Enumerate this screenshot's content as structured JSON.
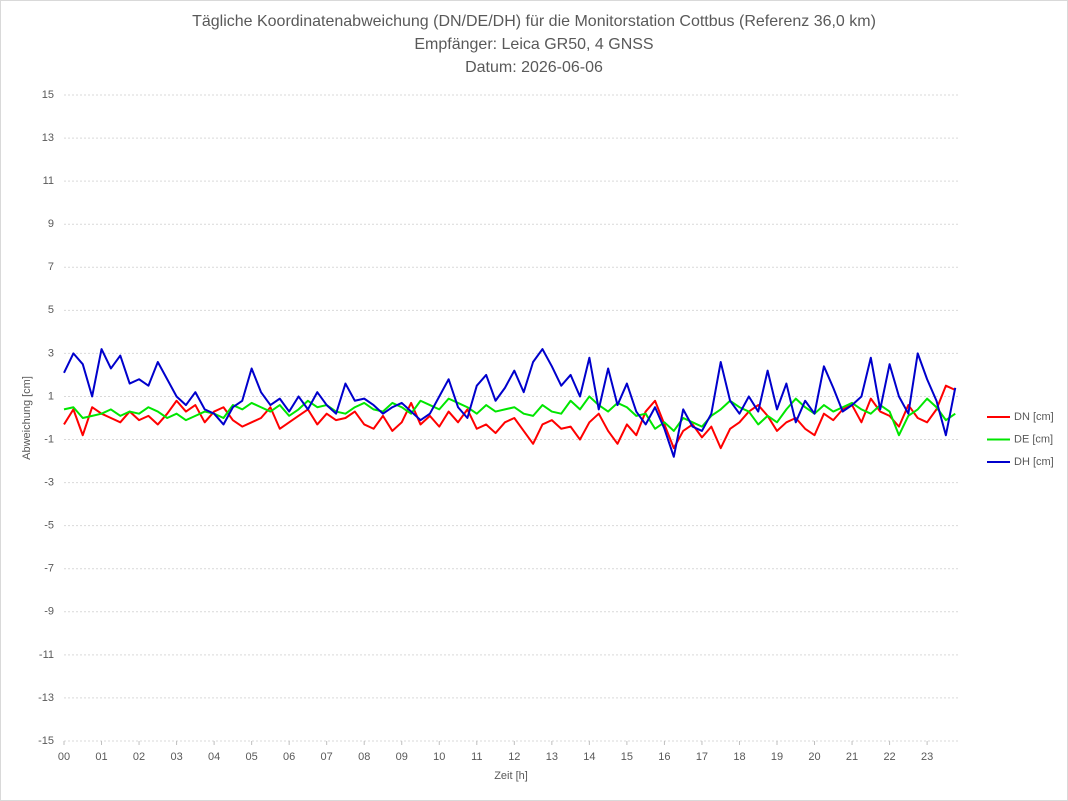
{
  "chart_data": {
    "type": "line",
    "title": "Tägliche Koordinatenabweichung (DN/DE/DH) für die Monitorstation Cottbus (Referenz 36,0 km)",
    "subtitle": [
      "Empfänger: Leica GR50, 4 GNSS",
      "Datum: 2026-06-06"
    ],
    "x_label": "Zeit [h]",
    "y_label": "Abweichung [cm]",
    "x": [
      0,
      0.25,
      0.5,
      0.75,
      1,
      1.25,
      1.5,
      1.75,
      2,
      2.25,
      2.5,
      2.75,
      3,
      3.25,
      3.5,
      3.75,
      4,
      4.25,
      4.5,
      4.75,
      5,
      5.25,
      5.5,
      5.75,
      6,
      6.25,
      6.5,
      6.75,
      7,
      7.25,
      7.5,
      7.75,
      8,
      8.25,
      8.5,
      8.75,
      9,
      9.25,
      9.5,
      9.75,
      10,
      10.25,
      10.5,
      10.75,
      11,
      11.25,
      11.5,
      11.75,
      12,
      12.25,
      12.5,
      12.75,
      13,
      13.25,
      13.5,
      13.75,
      14,
      14.25,
      14.5,
      14.75,
      15,
      15.25,
      15.5,
      15.75,
      16,
      16.25,
      16.5,
      16.75,
      17,
      17.25,
      17.5,
      17.75,
      18,
      18.25,
      18.5,
      18.75,
      19,
      19.25,
      19.5,
      19.75,
      20,
      20.25,
      20.5,
      20.75,
      21,
      21.25,
      21.5,
      21.75,
      22,
      22.25,
      22.5,
      22.75,
      23,
      23.25,
      23.5,
      23.75
    ],
    "series": [
      {
        "name": "DN [cm]",
        "color": "#ff0000",
        "values": [
          -0.3,
          0.4,
          -0.8,
          0.5,
          0.2,
          0.0,
          -0.2,
          0.3,
          -0.1,
          0.1,
          -0.3,
          0.2,
          0.8,
          0.3,
          0.6,
          -0.2,
          0.3,
          0.5,
          -0.1,
          -0.4,
          -0.2,
          0.0,
          0.5,
          -0.5,
          -0.2,
          0.1,
          0.4,
          -0.3,
          0.2,
          -0.1,
          0.0,
          0.3,
          -0.3,
          -0.5,
          0.1,
          -0.6,
          -0.2,
          0.7,
          -0.3,
          0.1,
          -0.4,
          0.3,
          -0.2,
          0.4,
          -0.5,
          -0.3,
          -0.7,
          -0.2,
          0.0,
          -0.6,
          -1.2,
          -0.3,
          -0.1,
          -0.5,
          -0.4,
          -1.0,
          -0.2,
          0.2,
          -0.6,
          -1.2,
          -0.3,
          -0.8,
          0.3,
          0.8,
          -0.3,
          -1.4,
          -0.6,
          -0.3,
          -0.9,
          -0.4,
          -1.4,
          -0.5,
          -0.2,
          0.3,
          0.6,
          0.1,
          -0.6,
          -0.2,
          0.0,
          -0.5,
          -0.8,
          0.2,
          -0.1,
          0.4,
          0.6,
          -0.2,
          0.9,
          0.3,
          0.1,
          -0.4,
          0.6,
          0.0,
          -0.2,
          0.4,
          1.5,
          1.3
        ]
      },
      {
        "name": "DE [cm]",
        "color": "#00e600",
        "values": [
          0.4,
          0.5,
          0.0,
          0.1,
          0.2,
          0.4,
          0.1,
          0.3,
          0.2,
          0.5,
          0.3,
          0.0,
          0.2,
          -0.1,
          0.1,
          0.3,
          0.2,
          0.0,
          0.6,
          0.4,
          0.7,
          0.5,
          0.3,
          0.6,
          0.1,
          0.4,
          0.8,
          0.5,
          0.6,
          0.3,
          0.2,
          0.5,
          0.7,
          0.4,
          0.3,
          0.7,
          0.5,
          0.2,
          0.8,
          0.6,
          0.4,
          0.9,
          0.7,
          0.5,
          0.2,
          0.6,
          0.3,
          0.4,
          0.5,
          0.2,
          0.1,
          0.6,
          0.3,
          0.2,
          0.8,
          0.4,
          1.0,
          0.6,
          0.3,
          0.7,
          0.5,
          0.1,
          0.2,
          -0.5,
          -0.2,
          -0.6,
          0.0,
          -0.2,
          -0.4,
          0.1,
          0.4,
          0.8,
          0.5,
          0.3,
          -0.3,
          0.1,
          -0.2,
          0.4,
          0.9,
          0.5,
          0.2,
          0.6,
          0.3,
          0.5,
          0.7,
          0.4,
          0.2,
          0.6,
          0.3,
          -0.8,
          0.1,
          0.4,
          0.9,
          0.5,
          -0.1,
          0.2
        ]
      },
      {
        "name": "DH [cm]",
        "color": "#0000cc",
        "values": [
          2.1,
          3.0,
          2.5,
          1.0,
          3.2,
          2.3,
          2.9,
          1.6,
          1.8,
          1.5,
          2.6,
          1.8,
          1.0,
          0.6,
          1.2,
          0.4,
          0.2,
          -0.3,
          0.5,
          0.8,
          2.3,
          1.2,
          0.6,
          0.9,
          0.3,
          1.0,
          0.4,
          1.2,
          0.6,
          0.2,
          1.6,
          0.8,
          0.9,
          0.6,
          0.2,
          0.5,
          0.7,
          0.3,
          -0.1,
          0.2,
          1.0,
          1.8,
          0.5,
          0.0,
          1.5,
          2.0,
          0.8,
          1.4,
          2.2,
          1.2,
          2.6,
          3.2,
          2.4,
          1.5,
          2.0,
          1.0,
          2.8,
          0.4,
          2.3,
          0.6,
          1.6,
          0.3,
          -0.3,
          0.5,
          -0.5,
          -1.8,
          0.4,
          -0.4,
          -0.6,
          0.2,
          2.6,
          0.8,
          0.2,
          1.0,
          0.3,
          2.2,
          0.4,
          1.6,
          -0.2,
          0.8,
          0.2,
          2.4,
          1.4,
          0.3,
          0.6,
          1.0,
          2.8,
          0.4,
          2.5,
          1.0,
          0.2,
          3.0,
          1.8,
          0.8,
          -0.8,
          1.4
        ]
      }
    ],
    "xlim": [
      0,
      23.85
    ],
    "xticks": [
      {
        "value": 0,
        "label": "00"
      },
      {
        "value": 1,
        "label": "01"
      },
      {
        "value": 2,
        "label": "02"
      },
      {
        "value": 3,
        "label": "03"
      },
      {
        "value": 4,
        "label": "04"
      },
      {
        "value": 5,
        "label": "05"
      },
      {
        "value": 6,
        "label": "06"
      },
      {
        "value": 7,
        "label": "07"
      },
      {
        "value": 8,
        "label": "08"
      },
      {
        "value": 9,
        "label": "09"
      },
      10,
      11,
      12,
      13,
      14,
      15,
      16,
      17,
      18,
      19,
      20,
      21,
      22,
      23
    ],
    "ylim": [
      -15,
      15
    ],
    "yticks": [
      -15,
      -13,
      -11,
      -9,
      -7,
      -5,
      -3,
      -1,
      1,
      3,
      5,
      7,
      9,
      11,
      13,
      15
    ],
    "grid": true,
    "legend": "right"
  }
}
